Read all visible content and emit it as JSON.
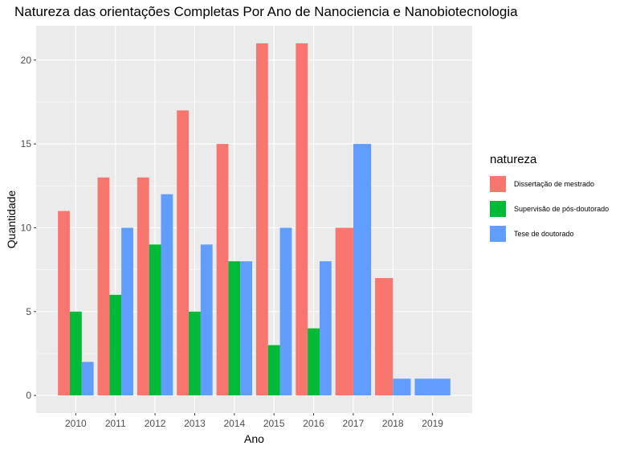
{
  "chart_data": {
    "type": "bar",
    "title": "Natureza das orientações Completas Por Ano de Nanociencia e Nanobiotecnologia",
    "xlabel": "Ano",
    "ylabel": "Quantidade",
    "categories": [
      "2010",
      "2011",
      "2012",
      "2013",
      "2014",
      "2015",
      "2016",
      "2017",
      "2018",
      "2019"
    ],
    "yticks": [
      0,
      5,
      10,
      15,
      20
    ],
    "ylim": [
      -1.05,
      22.05
    ],
    "legend_title": "natureza",
    "legend_position": "right",
    "grid": true,
    "series": [
      {
        "name": "Dissertação de mestrado",
        "color": "#F8766D",
        "values": [
          11,
          13,
          13,
          17,
          15,
          21,
          21,
          10,
          7,
          null
        ]
      },
      {
        "name": "Supervisão de pós-doutorado",
        "color": "#00BA38",
        "values": [
          5,
          6,
          9,
          5,
          8,
          3,
          4,
          null,
          null,
          null
        ]
      },
      {
        "name": "Tese de doutorado",
        "color": "#619CFF",
        "values": [
          2,
          10,
          12,
          9,
          8,
          10,
          8,
          15,
          1,
          1
        ]
      }
    ]
  }
}
